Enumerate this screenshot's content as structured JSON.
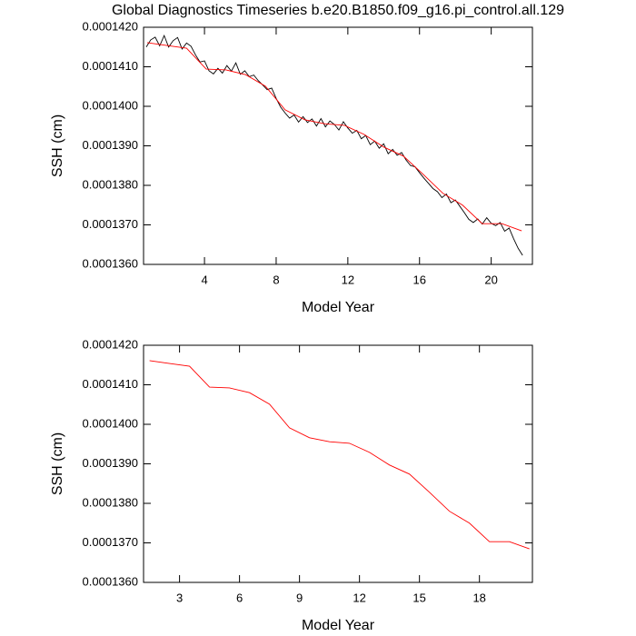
{
  "chart_data": [
    {
      "type": "line",
      "title": "Global Diagnostics Timeseries b.e20.B1850.f09_g16.pi_control.all.129",
      "x_label": "Model Year",
      "y_label": "SSH (cm)",
      "xlim": [
        0.6,
        22.3
      ],
      "xticks": [
        4,
        8,
        12,
        16,
        20
      ],
      "ylim": [
        0.000136,
        0.000142
      ],
      "yticks": [
        {
          "value": 0.000136,
          "label": "0.0001360"
        },
        {
          "value": 0.000137,
          "label": "0.0001370"
        },
        {
          "value": 0.000138,
          "label": "0.0001380"
        },
        {
          "value": 0.000139,
          "label": "0.0001390"
        },
        {
          "value": 0.00014,
          "label": "0.0001400"
        },
        {
          "value": 0.000141,
          "label": "0.0001410"
        },
        {
          "value": 0.000142,
          "label": "0.0001420"
        }
      ],
      "series": [
        {
          "color": "#000000",
          "x": [
            0.75,
            1,
            1.25,
            1.5,
            1.75,
            2,
            2.25,
            2.5,
            2.75,
            3,
            3.25,
            3.5,
            3.75,
            4,
            4.25,
            4.5,
            4.75,
            5,
            5.25,
            5.5,
            5.75,
            6,
            6.25,
            6.5,
            6.75,
            7,
            7.25,
            7.5,
            7.75,
            8,
            8.25,
            8.5,
            8.75,
            9,
            9.25,
            9.5,
            9.75,
            10,
            10.25,
            10.5,
            10.75,
            11,
            11.25,
            11.5,
            11.75,
            12,
            12.25,
            12.5,
            12.75,
            13,
            13.25,
            13.5,
            13.75,
            14,
            14.25,
            14.5,
            14.75,
            15,
            15.25,
            15.5,
            15.75,
            16,
            16.25,
            16.5,
            16.75,
            17,
            17.25,
            17.5,
            17.75,
            18,
            18.25,
            18.5,
            18.75,
            19,
            19.25,
            19.5,
            19.75,
            20,
            20.25,
            20.5,
            20.75,
            21,
            21.25,
            21.5,
            21.75
          ],
          "values": [
            0.0001415,
            0.00014168,
            0.00014175,
            0.00014153,
            0.00014179,
            0.0001415,
            0.00014166,
            0.00014174,
            0.00014145,
            0.0001416,
            0.00014152,
            0.0001413,
            0.00014112,
            0.00014115,
            0.0001409,
            0.00014082,
            0.00014096,
            0.00014084,
            0.00014103,
            0.00014089,
            0.0001411,
            0.00014081,
            0.0001409,
            0.00014075,
            0.00014079,
            0.00014065,
            0.00014054,
            0.00014042,
            0.00014046,
            0.0001402,
            0.00013998,
            0.00013983,
            0.0001397,
            0.00013978,
            0.0001396,
            0.00013974,
            0.00013959,
            0.00013968,
            0.0001395,
            0.00013969,
            0.00013948,
            0.00013963,
            0.00013954,
            0.0001394,
            0.00013961,
            0.00013945,
            0.00013932,
            0.00013939,
            0.00013918,
            0.00013926,
            0.00013903,
            0.00013912,
            0.00013894,
            0.00013905,
            0.0001388,
            0.00013891,
            0.00013876,
            0.00013883,
            0.00013864,
            0.0001385,
            0.00013847,
            0.00013832,
            0.00013818,
            0.00013805,
            0.00013792,
            0.00013784,
            0.00013769,
            0.00013778,
            0.00013756,
            0.00013763,
            0.00013747,
            0.00013731,
            0.00013714,
            0.00013706,
            0.00013715,
            0.00013702,
            0.00013718,
            0.00013704,
            0.00013698,
            0.00013706,
            0.00013684,
            0.00013692,
            0.00013665,
            0.00013641,
            0.00013623
          ]
        },
        {
          "color": "#ff0000",
          "x": [
            0.8,
            1.9,
            3.0,
            4.1,
            5.2,
            6.3,
            7.4,
            8.5,
            9.6,
            10.7,
            11.8,
            12.9,
            14.0,
            15.1,
            16.2,
            17.3,
            18.4,
            19.5,
            20.6,
            21.7
          ],
          "values": [
            0.00014161,
            0.00014154,
            0.00014147,
            0.00014094,
            0.00014092,
            0.0001408,
            0.00014051,
            0.00013991,
            0.00013966,
            0.00013956,
            0.00013952,
            0.00013929,
            0.00013897,
            0.00013874,
            0.00013828,
            0.0001378,
            0.0001375,
            0.00013703,
            0.00013703,
            0.00013685
          ]
        }
      ]
    },
    {
      "type": "line",
      "x_label": "Model Year",
      "y_label": "SSH (cm)",
      "xlim": [
        1.2,
        20.65
      ],
      "xticks": [
        3,
        6,
        9,
        12,
        15,
        18
      ],
      "ylim": [
        0.000136,
        0.000142
      ],
      "yticks": [
        {
          "value": 0.000136,
          "label": "0.0001360"
        },
        {
          "value": 0.000137,
          "label": "0.0001370"
        },
        {
          "value": 0.000138,
          "label": "0.0001380"
        },
        {
          "value": 0.000139,
          "label": "0.0001390"
        },
        {
          "value": 0.00014,
          "label": "0.0001400"
        },
        {
          "value": 0.000141,
          "label": "0.0001410"
        },
        {
          "value": 0.000142,
          "label": "0.0001420"
        }
      ],
      "series": [
        {
          "color": "#ff0000",
          "x": [
            1.5,
            2.5,
            3.5,
            4.5,
            5.5,
            6.5,
            7.5,
            8.5,
            9.5,
            10.5,
            11.5,
            12.5,
            13.5,
            14.5,
            15.5,
            16.5,
            17.5,
            18.5,
            19.5,
            20.5
          ],
          "values": [
            0.00014161,
            0.00014154,
            0.00014147,
            0.00014094,
            0.00014092,
            0.0001408,
            0.00014051,
            0.00013991,
            0.00013966,
            0.00013956,
            0.00013952,
            0.00013929,
            0.00013897,
            0.00013874,
            0.00013828,
            0.0001378,
            0.0001375,
            0.00013703,
            0.00013703,
            0.00013685
          ]
        }
      ]
    }
  ]
}
